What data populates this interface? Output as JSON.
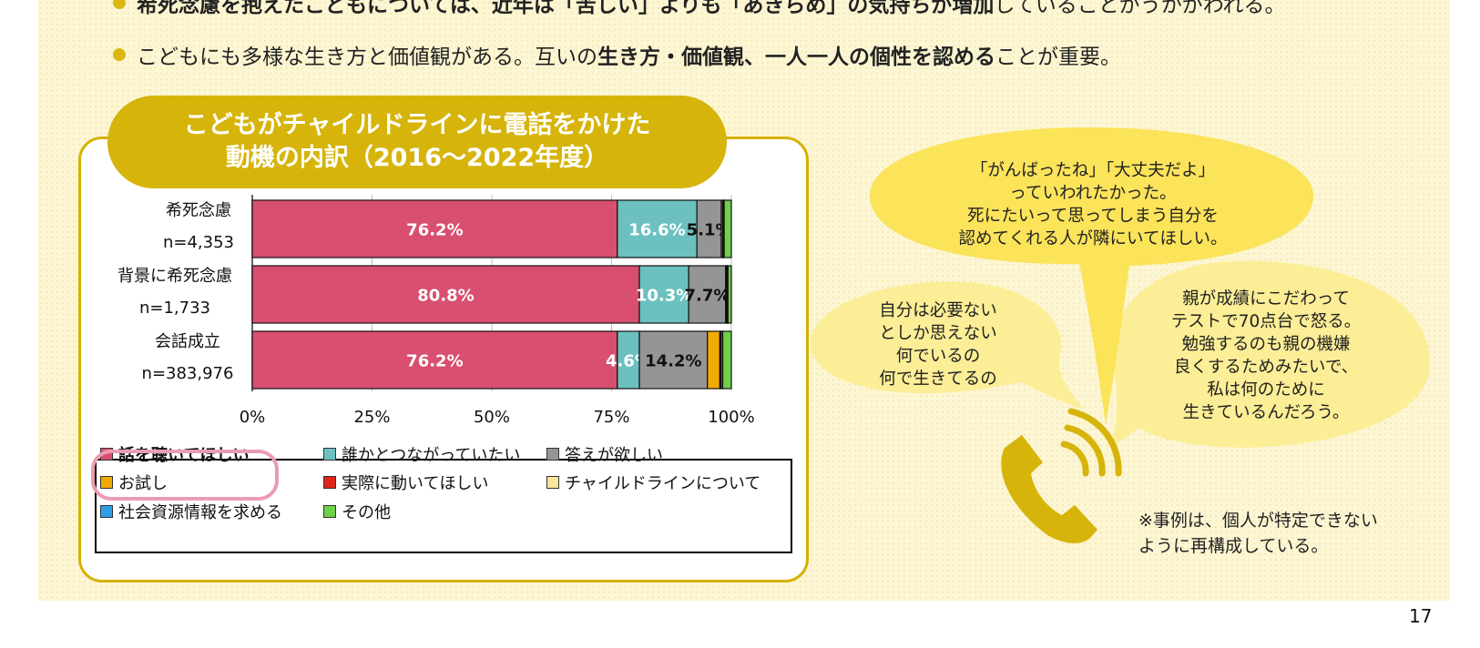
{
  "bullets": [
    {
      "parts": [
        {
          "text": "希死念慮を抱えたこどもについては、近年は「苦しい」よりも「あきらめ」の気持ちが増加",
          "bold": true
        },
        {
          "text": "していることがうかがわれる。",
          "bold": false
        }
      ]
    },
    {
      "parts": [
        {
          "text": "こどもにも多様な生き方と価値観がある。互いの",
          "bold": false
        },
        {
          "text": "生き方・価値観、一人一人の個性を認める",
          "bold": true
        },
        {
          "text": "ことが重要。",
          "bold": false
        }
      ]
    }
  ],
  "chart_data": {
    "type": "bar",
    "orientation": "horizontal",
    "stacked": true,
    "title": [
      "こどもがチャイルドラインに電話をかけた",
      "動機の内訳（2016〜2022年度）"
    ],
    "categories": [
      {
        "label": "希死念慮",
        "n": "n=4,353"
      },
      {
        "label": "背景に希死念慮",
        "n": "n=1,733"
      },
      {
        "label": "会話成立",
        "n": "n=383,976"
      }
    ],
    "xlim": [
      0,
      100
    ],
    "x_ticks": [
      "0%",
      "25%",
      "50%",
      "75%",
      "100%"
    ],
    "grid": true,
    "series": [
      {
        "name": "話を聴いてほしい",
        "color": "#d94f70",
        "values": [
          76.2,
          80.8,
          76.2
        ],
        "labels": [
          "76.2%",
          "80.8%",
          "76.2%"
        ],
        "label_color": "#ffffff"
      },
      {
        "name": "誰かとつながっていたい",
        "color": "#6cc1c0",
        "values": [
          16.6,
          10.3,
          4.6
        ],
        "labels": [
          "16.6%",
          "10.3%",
          "4.6%"
        ],
        "label_color": "#ffffff"
      },
      {
        "name": "答えが欲しい",
        "color": "#959595",
        "values": [
          5.1,
          7.7,
          14.2
        ],
        "labels": [
          "5.1%",
          "7.7%",
          "14.2%"
        ],
        "label_color": "#111111"
      },
      {
        "name": "お試し",
        "color": "#f2a900",
        "values": [
          0.3,
          0.2,
          2.6
        ],
        "labels": [
          "",
          "",
          ""
        ],
        "label_color": "#111111"
      },
      {
        "name": "実際に動いてほしい",
        "color": "#e0261b",
        "values": [
          0.1,
          0.1,
          0.2
        ],
        "labels": [
          "",
          "",
          ""
        ],
        "label_color": "#111111"
      },
      {
        "name": "チャイルドラインについて",
        "color": "#f9e79a",
        "values": [
          0.1,
          0.1,
          0.3
        ],
        "labels": [
          "",
          "",
          ""
        ],
        "label_color": "#111111"
      },
      {
        "name": "社会資源情報を求める",
        "color": "#2f9ee8",
        "values": [
          0.1,
          0.1,
          0.1
        ],
        "labels": [
          "",
          "",
          ""
        ],
        "label_color": "#111111"
      },
      {
        "name": "その他",
        "color": "#6fd04a",
        "values": [
          1.5,
          0.7,
          1.8
        ],
        "labels": [
          "",
          "",
          ""
        ],
        "label_color": "#111111"
      }
    ],
    "legend_placement": "bottom",
    "highlighted_legend_item": "話を聴いてほしい"
  },
  "bubbles": {
    "top": [
      "「がんばったね」「大丈夫だよ」",
      "っていわれたかった。",
      "死にたいって思ってしまう自分を",
      "認めてくれる人が隣にいてほしい。"
    ],
    "left": [
      "自分は必要ない",
      "としか思えない",
      "何でいるの",
      "何で生きてるの"
    ],
    "right": [
      "親が成績にこだわって",
      "テストで70点台で怒る。",
      "勉強するのも親の機嫌",
      "良くするためみたいで、",
      "私は何のために",
      "生きているんだろう。"
    ]
  },
  "phone_icon": "phone-icon",
  "note": [
    "※事例は、個人が特定できない",
    "ように再構成している。"
  ],
  "page_number": "17",
  "colors": {
    "accent_gold": "#d6b40a",
    "bubble_yellow": "#fbe35a",
    "bubble_light": "#fcee96",
    "highlight_pink": "#e99cb4"
  }
}
